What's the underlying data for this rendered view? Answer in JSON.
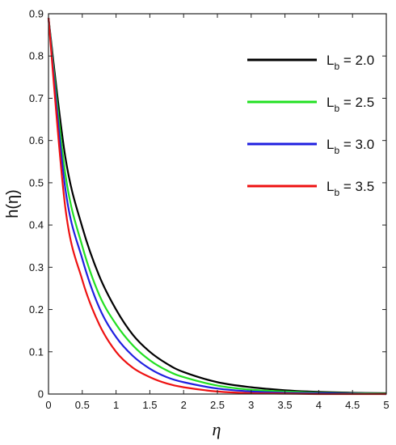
{
  "chart_data": {
    "type": "line",
    "xlabel": "η",
    "ylabel": "h(η)",
    "xlim": [
      0,
      5
    ],
    "ylim": [
      0,
      0.9
    ],
    "xticks": [
      "0",
      "0.5",
      "1",
      "1.5",
      "2",
      "2.5",
      "3",
      "3.5",
      "4",
      "4.5",
      "5"
    ],
    "yticks": [
      "0",
      "0.1",
      "0.2",
      "0.3",
      "0.4",
      "0.5",
      "0.6",
      "0.7",
      "0.8",
      "0.9"
    ],
    "grid": false,
    "legend_position": "top-right",
    "x": [
      0,
      0.25,
      0.5,
      0.75,
      1,
      1.25,
      1.5,
      1.75,
      2,
      2.5,
      3,
      3.5,
      4,
      4.5,
      5
    ],
    "series": [
      {
        "name_main": "L",
        "name_sub": "b",
        "name_value": " = 2.0",
        "color": "#000000",
        "values": [
          0.89,
          0.56,
          0.395,
          0.28,
          0.2,
          0.14,
          0.1,
          0.072,
          0.052,
          0.028,
          0.016,
          0.009,
          0.005,
          0.003,
          0.002
        ]
      },
      {
        "name_main": "L",
        "name_sub": "b",
        "name_value": " = 2.5",
        "color": "#22e022",
        "values": [
          0.89,
          0.52,
          0.35,
          0.235,
          0.165,
          0.115,
          0.08,
          0.056,
          0.04,
          0.02,
          0.01,
          0.006,
          0.003,
          0.002,
          0.001
        ]
      },
      {
        "name_main": "L",
        "name_sub": "b",
        "name_value": " = 3.0",
        "color": "#1f1fe0",
        "values": [
          0.89,
          0.485,
          0.32,
          0.205,
          0.135,
          0.09,
          0.06,
          0.04,
          0.028,
          0.013,
          0.006,
          0.003,
          0.002,
          0.001,
          0.0
        ]
      },
      {
        "name_main": "L",
        "name_sub": "b",
        "name_value": " = 3.5",
        "color": "#ee1111",
        "values": [
          0.89,
          0.44,
          0.27,
          0.165,
          0.1,
          0.062,
          0.04,
          0.025,
          0.016,
          0.006,
          0.002,
          0.001,
          0.0,
          0.0,
          0.0
        ]
      }
    ]
  }
}
